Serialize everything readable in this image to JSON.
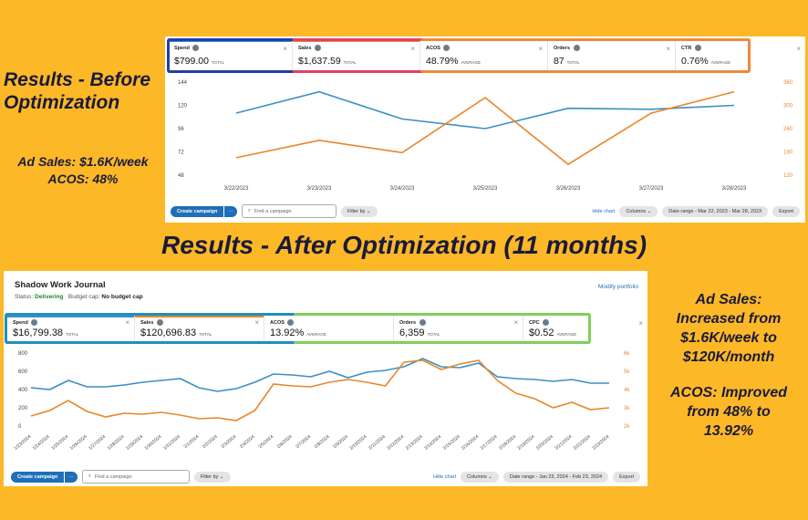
{
  "before": {
    "heading": "Results - Before Optimization",
    "stat_sales": "Ad Sales: $1.6K/week",
    "stat_acos": "ACOS: 48%"
  },
  "after_heading": "Results - After Optimization (11 months)",
  "after": {
    "stat_1": "Ad Sales:",
    "stat_2": "Increased from",
    "stat_3": "$1.6K/week to",
    "stat_4": "$120K/month",
    "stat_5": "ACOS: Improved",
    "stat_6": "from 48% to",
    "stat_7": "13.92%"
  },
  "panel1": {
    "metrics": [
      {
        "label": "Spend",
        "value": "$799.00",
        "sub": "TOTAL",
        "line_color": "#3a8fc7"
      },
      {
        "label": "Sales",
        "value": "$1,637.59",
        "sub": "TOTAL",
        "line_color": "#e8862a"
      },
      {
        "label": "ACOS",
        "value": "48.79%",
        "sub": "AVERAGE",
        "line_color": ""
      },
      {
        "label": "Orders",
        "value": "87",
        "sub": "TOTAL",
        "line_color": ""
      },
      {
        "label": "CTR",
        "value": "0.76%",
        "sub": "AVERAGE",
        "line_color": ""
      }
    ],
    "toolbar": {
      "create": "Create campaign",
      "more": "···",
      "search_placeholder": "Find a campaign",
      "filter": "Filter by",
      "hide_chart": "Hide chart",
      "columns": "Columns",
      "date_range": "Date range - Mar 22, 2023 - Mar 28, 2023",
      "export": "Export"
    }
  },
  "panel2": {
    "portfolio_name": "Shadow Work Journal",
    "status_label": "Status:",
    "status_value": "Delivering",
    "budget_label": "Budget cap:",
    "budget_value": "No budget cap",
    "modify": "Modify portfolio",
    "metrics": [
      {
        "label": "Spend",
        "value": "$16,799.38",
        "sub": "TOTAL",
        "line_color": "#3a8fc7"
      },
      {
        "label": "Sales",
        "value": "$120,696.83",
        "sub": "TOTAL",
        "line_color": "#e8862a"
      },
      {
        "label": "ACOS",
        "value": "13.92%",
        "sub": "AVERAGE",
        "line_color": ""
      },
      {
        "label": "Orders",
        "value": "6,359",
        "sub": "TOTAL",
        "line_color": ""
      },
      {
        "label": "CPC",
        "value": "$0.52",
        "sub": "AVERAGE",
        "line_color": ""
      }
    ],
    "toolbar": {
      "create": "Create campaign",
      "more": "···",
      "search_placeholder": "Find a campaign",
      "filter": "Filter by",
      "hide_chart": "Hide chart",
      "columns": "Columns",
      "date_range": "Date range - Jan 23, 2024 - Feb 23, 2024",
      "export": "Export"
    }
  },
  "colors": {
    "background": "#FDB827",
    "spend": "#3a8fc7",
    "sales": "#e8862a",
    "outline_before": [
      "#1f3fa8",
      "#e0406a",
      "#f0883a"
    ],
    "outline_after": [
      "#1f8fc0",
      "#7fcf5a"
    ]
  },
  "chart_data": [
    {
      "type": "line",
      "categories": [
        "3/22/2023",
        "3/23/2023",
        "3/24/2023",
        "3/25/2023",
        "3/26/2023",
        "3/27/2023",
        "3/28/2023"
      ],
      "left_ticks": [
        "144",
        "120",
        "96",
        "72",
        "48"
      ],
      "right_ticks": [
        "360",
        "300",
        "240",
        "180",
        "120"
      ],
      "ylim_left": [
        48,
        144
      ],
      "ylim_right": [
        120,
        360
      ],
      "series": [
        {
          "name": "Spend",
          "axis": "left",
          "color": "#3a8fc7",
          "values": [
            112,
            134,
            106,
            96,
            117,
            116,
            120
          ]
        },
        {
          "name": "Sales",
          "axis": "right",
          "color": "#e8862a",
          "values": [
            165,
            210,
            178,
            320,
            148,
            280,
            335
          ]
        }
      ],
      "grid": false
    },
    {
      "type": "line",
      "categories": [
        "1/23/2024",
        "1/24/2024",
        "1/25/2024",
        "1/26/2024",
        "1/27/2024",
        "1/28/2024",
        "1/29/2024",
        "1/30/2024",
        "1/31/2024",
        "2/1/2024",
        "2/2/2024",
        "2/3/2024",
        "2/4/2024",
        "2/5/2024",
        "2/6/2024",
        "2/7/2024",
        "2/8/2024",
        "2/9/2024",
        "2/10/2024",
        "2/11/2024",
        "2/12/2024",
        "2/13/2024",
        "2/14/2024",
        "2/15/2024",
        "2/16/2024",
        "2/17/2024",
        "2/18/2024",
        "2/19/2024",
        "2/20/2024",
        "2/21/2024",
        "2/22/2024",
        "2/23/2024"
      ],
      "left_ticks": [
        "800",
        "600",
        "400",
        "200",
        "0"
      ],
      "right_ticks": [
        "6k",
        "5k",
        "4k",
        "3k",
        "2k"
      ],
      "ylim_left": [
        0,
        800
      ],
      "ylim_right": [
        2000,
        6000
      ],
      "series": [
        {
          "name": "Spend",
          "axis": "left",
          "color": "#3a8fc7",
          "values": [
            420,
            400,
            500,
            430,
            430,
            450,
            480,
            500,
            520,
            420,
            380,
            410,
            480,
            570,
            560,
            540,
            600,
            530,
            590,
            610,
            650,
            740,
            650,
            640,
            690,
            540,
            520,
            510,
            490,
            510,
            470,
            470
          ]
        },
        {
          "name": "Sales",
          "axis": "right",
          "color": "#e8862a",
          "values": [
            2550,
            2850,
            3400,
            2800,
            2500,
            2700,
            2650,
            2750,
            2600,
            2400,
            2450,
            2300,
            2850,
            4300,
            4200,
            4150,
            4400,
            4550,
            4400,
            4200,
            5500,
            5600,
            5100,
            5400,
            5600,
            4500,
            3800,
            3500,
            3000,
            3300,
            2900,
            3000
          ]
        }
      ],
      "grid": false
    }
  ]
}
